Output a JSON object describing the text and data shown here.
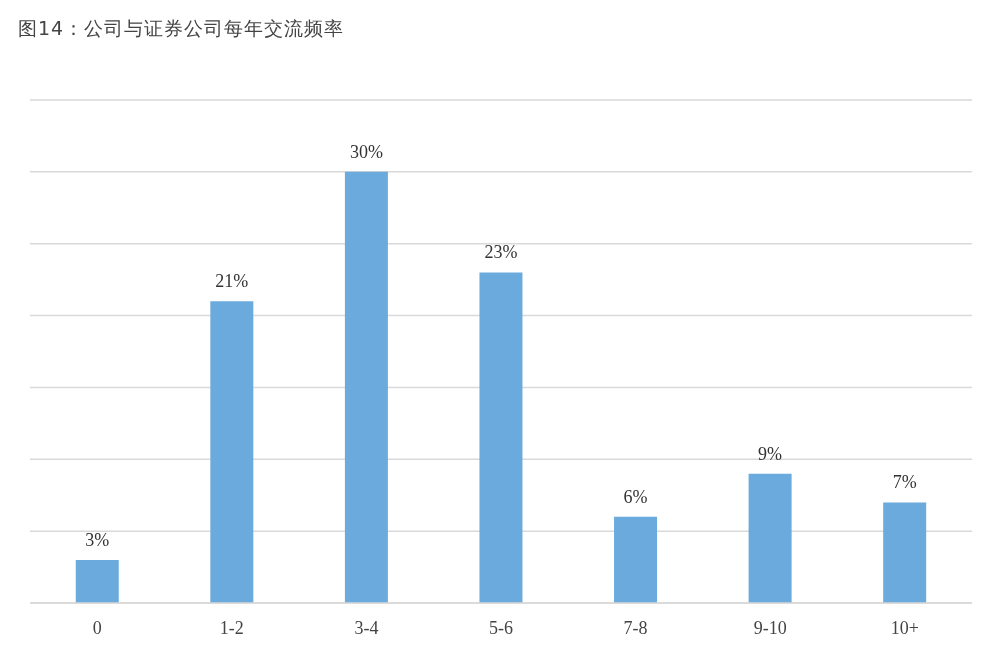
{
  "chart_data": {
    "type": "bar",
    "title": "图14：公司与证券公司每年交流频率",
    "categories": [
      "0",
      "1-2",
      "3-4",
      "5-6",
      "7-8",
      "9-10",
      "10+"
    ],
    "values": [
      3,
      21,
      30,
      23,
      6,
      9,
      7
    ],
    "value_labels": [
      "3%",
      "21%",
      "30%",
      "23%",
      "6%",
      "9%",
      "7%"
    ],
    "color": "#6aaadc",
    "ylim": [
      0,
      35
    ],
    "tick_labels": "x",
    "grid": "y"
  }
}
